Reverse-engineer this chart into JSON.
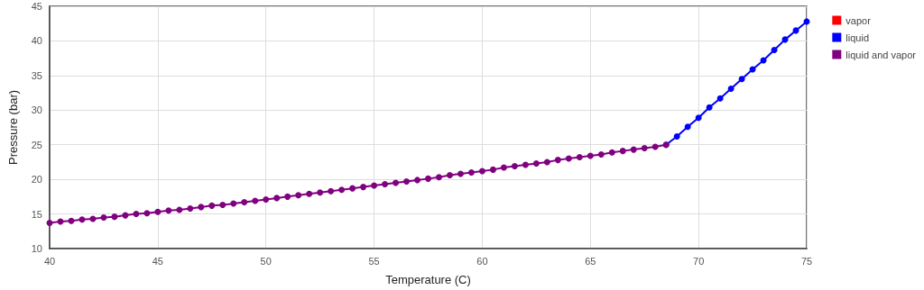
{
  "chart_data": {
    "type": "line",
    "xlabel": "Temperature (C)",
    "ylabel": "Pressure (bar)",
    "xlim": [
      40,
      75
    ],
    "xticks": [
      40,
      45,
      50,
      55,
      60,
      65,
      70,
      75
    ],
    "ylim": [
      10,
      45
    ],
    "yticks": [
      10,
      15,
      20,
      25,
      30,
      35,
      40,
      45
    ],
    "grid": true,
    "legend": "top right",
    "marker": "circle",
    "line_style": "solid",
    "series": [
      {
        "name": "vapor",
        "color": "#ff0000"
      },
      {
        "name": "liquid",
        "color": "#0000ff",
        "x": [
          68.5,
          69,
          69.5,
          70,
          70.5,
          71,
          71.5,
          72,
          72.5,
          73,
          73.5,
          74,
          74.5,
          75
        ],
        "values": [
          25.0,
          26.2,
          27.6,
          28.9,
          30.4,
          31.7,
          33.1,
          34.5,
          35.9,
          37.2,
          38.7,
          40.2,
          41.5,
          42.8
        ]
      },
      {
        "name": "liquid and vapor",
        "color": "#800080",
        "x": [
          40,
          40.5,
          41,
          41.5,
          42,
          42.5,
          43,
          43.5,
          44,
          44.5,
          45,
          45.5,
          46,
          46.5,
          47,
          47.5,
          48,
          48.5,
          49,
          49.5,
          50,
          50.5,
          51,
          51.5,
          52,
          52.5,
          53,
          53.5,
          54,
          54.5,
          55,
          55.5,
          56,
          56.5,
          57,
          57.5,
          58,
          58.5,
          59,
          59.5,
          60,
          60.5,
          61,
          61.5,
          62,
          62.5,
          63,
          63.5,
          64,
          64.5,
          65,
          65.5,
          66,
          66.5,
          67,
          67.5,
          68,
          68.5
        ],
        "values": [
          13.7,
          13.9,
          14.0,
          14.2,
          14.3,
          14.5,
          14.6,
          14.8,
          15.0,
          15.1,
          15.3,
          15.5,
          15.6,
          15.8,
          16.0,
          16.2,
          16.3,
          16.5,
          16.7,
          16.9,
          17.1,
          17.3,
          17.5,
          17.7,
          17.9,
          18.1,
          18.3,
          18.5,
          18.7,
          18.9,
          19.1,
          19.3,
          19.5,
          19.7,
          19.9,
          20.1,
          20.3,
          20.6,
          20.8,
          21.0,
          21.2,
          21.4,
          21.7,
          21.9,
          22.1,
          22.3,
          22.5,
          22.8,
          23.0,
          23.2,
          23.4,
          23.6,
          23.9,
          24.1,
          24.3,
          24.5,
          24.7,
          25.0
        ]
      }
    ]
  }
}
